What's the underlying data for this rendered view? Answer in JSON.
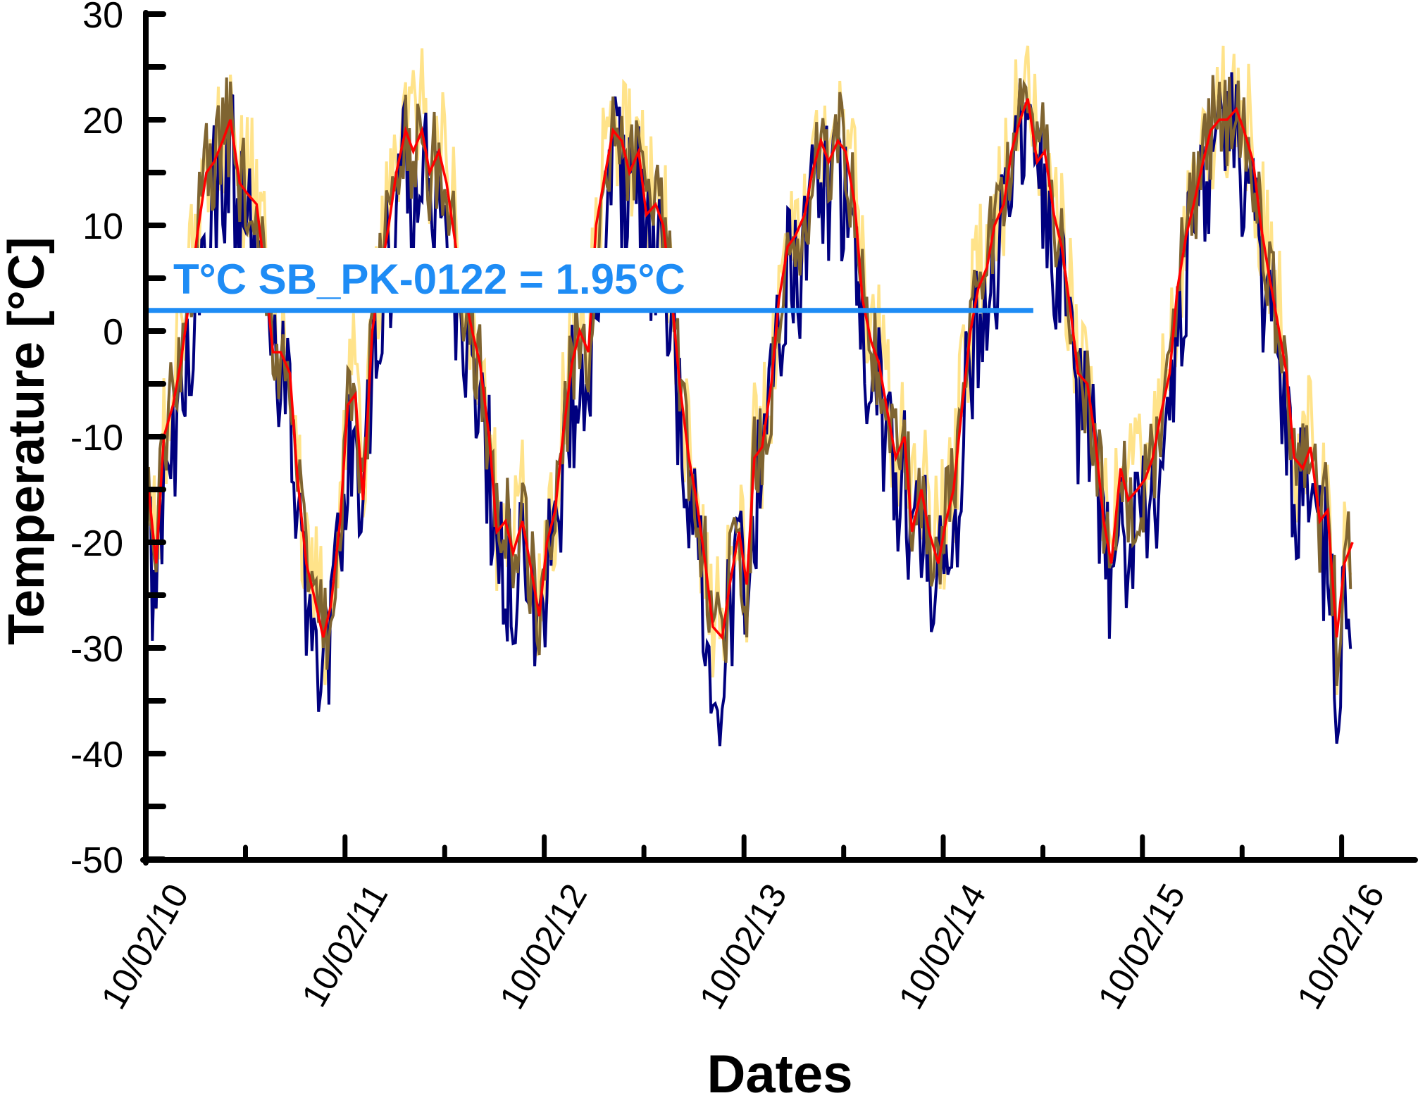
{
  "chart_data": {
    "type": "line",
    "title": "",
    "xlabel": "Dates",
    "ylabel": "Temperature [°C]",
    "ylim": [
      -50,
      30
    ],
    "yticks": [
      "30",
      "20",
      "10",
      "0",
      "-10",
      "-20",
      "-30",
      "-40",
      "-50"
    ],
    "yticks_values": [
      30,
      20,
      10,
      0,
      -10,
      -20,
      -30,
      -40,
      -50
    ],
    "xlim": [
      "2010-02-10",
      "2016-08-10"
    ],
    "xticks": [
      {
        "date": "2010-02-10",
        "label": "10/02/10"
      },
      {
        "date": "2011-02-10",
        "label": "10/02/11"
      },
      {
        "date": "2012-02-10",
        "label": "10/02/12"
      },
      {
        "date": "2013-02-10",
        "label": "10/02/13"
      },
      {
        "date": "2014-02-10",
        "label": "10/02/14"
      },
      {
        "date": "2015-02-10",
        "label": "10/02/15"
      },
      {
        "date": "2016-02-10",
        "label": "10/02/16"
      }
    ],
    "grid": false,
    "legend": "none",
    "smoothed_series": {
      "color": "#FF0000",
      "x": [
        "2010-02-15",
        "2010-03-01",
        "2010-03-15",
        "2010-04-01",
        "2010-04-15",
        "2010-05-01",
        "2010-05-15",
        "2010-06-01",
        "2010-06-15",
        "2010-07-01",
        "2010-07-15",
        "2010-08-01",
        "2010-08-15",
        "2010-09-01",
        "2010-09-15",
        "2010-10-01",
        "2010-10-15",
        "2010-11-01",
        "2010-11-15",
        "2010-12-01",
        "2010-12-15",
        "2011-01-01",
        "2011-01-15",
        "2011-02-01",
        "2011-02-15",
        "2011-03-01",
        "2011-03-15",
        "2011-04-01",
        "2011-04-15",
        "2011-05-01",
        "2011-05-15",
        "2011-06-01",
        "2011-06-15",
        "2011-07-01",
        "2011-07-15",
        "2011-08-01",
        "2011-08-15",
        "2011-09-01",
        "2011-09-15",
        "2011-10-01",
        "2011-10-15",
        "2011-11-01",
        "2011-11-15",
        "2011-12-01",
        "2011-12-15",
        "2012-01-01",
        "2012-01-15",
        "2012-02-01",
        "2012-02-15",
        "2012-03-01",
        "2012-03-15",
        "2012-04-01",
        "2012-04-15",
        "2012-05-01",
        "2012-05-15",
        "2012-06-01",
        "2012-06-15",
        "2012-07-01",
        "2012-07-15",
        "2012-08-01",
        "2012-08-15",
        "2012-09-01",
        "2012-09-15",
        "2012-10-01",
        "2012-10-15",
        "2012-11-01",
        "2012-11-15",
        "2012-12-01",
        "2012-12-15",
        "2013-01-01",
        "2013-01-15",
        "2013-02-01",
        "2013-02-15",
        "2013-03-01",
        "2013-03-15",
        "2013-04-01",
        "2013-04-15",
        "2013-05-01",
        "2013-05-15",
        "2013-06-01",
        "2013-06-15",
        "2013-07-01",
        "2013-07-15",
        "2013-08-01",
        "2013-08-15",
        "2013-09-01",
        "2013-09-15",
        "2013-10-01",
        "2013-10-15",
        "2013-11-01",
        "2013-11-15",
        "2013-12-01",
        "2013-12-15",
        "2014-01-01",
        "2014-01-15",
        "2014-02-01",
        "2014-02-15",
        "2014-03-01",
        "2014-03-15",
        "2014-04-01",
        "2014-04-15",
        "2014-05-01",
        "2014-05-15",
        "2014-06-01",
        "2014-06-15",
        "2014-07-01",
        "2014-07-15",
        "2014-08-01",
        "2014-08-15",
        "2014-09-01",
        "2014-09-15",
        "2014-10-01",
        "2014-10-15",
        "2014-11-01",
        "2014-11-15",
        "2014-12-01",
        "2014-12-15",
        "2015-01-01",
        "2015-01-15",
        "2015-02-01",
        "2015-02-15",
        "2015-03-01",
        "2015-03-15",
        "2015-04-01",
        "2015-04-15",
        "2015-05-01",
        "2015-05-15",
        "2015-06-01",
        "2015-06-15",
        "2015-07-01",
        "2015-07-15",
        "2015-08-01",
        "2015-08-15",
        "2015-09-01",
        "2015-09-15",
        "2015-10-01",
        "2015-10-15",
        "2015-11-01",
        "2015-11-15",
        "2015-12-01",
        "2015-12-15",
        "2016-01-01",
        "2016-01-15",
        "2016-02-01",
        "2016-02-15",
        "2016-03-01"
      ],
      "y": [
        -15,
        -22,
        -10,
        -7,
        -3,
        3,
        9,
        15,
        16,
        18,
        20,
        14,
        13,
        12,
        6,
        -2,
        -2,
        -4,
        -14,
        -22,
        -25,
        -29,
        -26,
        -18,
        -7,
        -6,
        -16,
        0,
        5,
        10,
        15,
        19,
        17,
        19,
        15,
        17,
        14,
        8,
        4,
        0,
        -3,
        -10,
        -19,
        -18,
        -21,
        -18,
        -22,
        -27,
        -20,
        -17,
        -10,
        -3,
        0,
        -2,
        10,
        15,
        19,
        18,
        15,
        17,
        11,
        12,
        10,
        3,
        -5,
        -12,
        -16,
        -22,
        -28,
        -29,
        -24,
        -19,
        -24,
        -12,
        -11,
        -5,
        3,
        8,
        9,
        11,
        15,
        18,
        16,
        18,
        17,
        12,
        3,
        -1,
        -3,
        -8,
        -12,
        -10,
        -19,
        -15,
        -19,
        -22,
        -18,
        -15,
        -8,
        0,
        4,
        6,
        10,
        12,
        17,
        20,
        22,
        16,
        17,
        11,
        8,
        2,
        -4,
        -5,
        -10,
        -18,
        -22,
        -13,
        -16,
        -15,
        -14,
        -12,
        -8,
        -4,
        4,
        9,
        12,
        16,
        19,
        20,
        20,
        21,
        19,
        16,
        10,
        5,
        1,
        -4,
        -12,
        -13,
        -11,
        -18,
        -17,
        -29,
        -22,
        -20
      ]
    },
    "daily_series": [
      {
        "color": "#FFE38A",
        "spread_below": 6,
        "spread_above": 8
      },
      {
        "color": "#00007F",
        "spread_below": 11,
        "spread_above": 4
      },
      {
        "color": "#7F6431",
        "spread_below": 5,
        "spread_above": 5
      }
    ],
    "reference_line": {
      "value": 1.95,
      "color": "#1E8CF5",
      "x_end": "2014-07-25",
      "label": "T°C SB_PK-0122 = 1.95°C"
    }
  }
}
